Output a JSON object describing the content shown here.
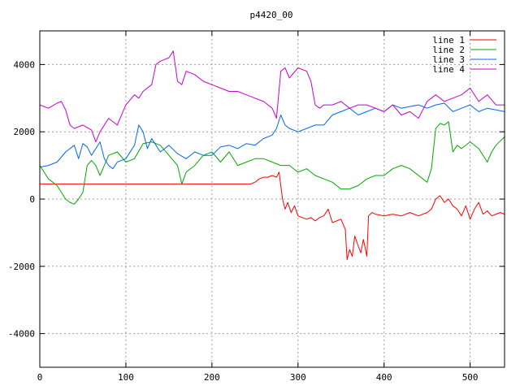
{
  "chart_data": {
    "type": "line",
    "title": "p4420_00",
    "xlabel": "",
    "ylabel": "",
    "xlim": [
      0,
      540
    ],
    "ylim": [
      -5000,
      5000
    ],
    "xticks": [
      0,
      100,
      200,
      300,
      400,
      500
    ],
    "yticks": [
      -4000,
      -2000,
      0,
      2000,
      4000
    ],
    "grid": true,
    "legend_position": "top-right",
    "series": [
      {
        "name": "line 1",
        "color": "#ff0000",
        "x": [
          0,
          50,
          100,
          150,
          200,
          245,
          250,
          255,
          260,
          265,
          270,
          275,
          278,
          282,
          285,
          288,
          292,
          296,
          300,
          305,
          310,
          315,
          320,
          325,
          330,
          335,
          340,
          345,
          350,
          355,
          357,
          360,
          363,
          366,
          370,
          373,
          376,
          380,
          382,
          386,
          390,
          400,
          410,
          420,
          430,
          440,
          450,
          455,
          460,
          465,
          470,
          475,
          480,
          485,
          490,
          495,
          500,
          505,
          510,
          515,
          520,
          525,
          530,
          535,
          540
        ],
        "y": [
          450,
          450,
          450,
          450,
          450,
          450,
          500,
          600,
          650,
          650,
          700,
          650,
          800,
          0,
          -300,
          -100,
          -400,
          -200,
          -500,
          -550,
          -600,
          -550,
          -650,
          -550,
          -500,
          -300,
          -700,
          -650,
          -600,
          -900,
          -1800,
          -1500,
          -1700,
          -1100,
          -1400,
          -1600,
          -1200,
          -1700,
          -500,
          -400,
          -450,
          -500,
          -450,
          -500,
          -400,
          -500,
          -400,
          -300,
          0,
          100,
          -100,
          0,
          -200,
          -300,
          -500,
          -200,
          -600,
          -300,
          -100,
          -450,
          -350,
          -500,
          -450,
          -400,
          -450
        ]
      },
      {
        "name": "line 2",
        "color": "#00aa00",
        "x": [
          0,
          10,
          20,
          30,
          35,
          40,
          45,
          50,
          55,
          60,
          65,
          70,
          80,
          90,
          100,
          110,
          120,
          130,
          140,
          150,
          160,
          165,
          170,
          180,
          190,
          200,
          210,
          220,
          230,
          240,
          250,
          260,
          270,
          280,
          290,
          300,
          310,
          320,
          330,
          340,
          350,
          360,
          370,
          380,
          390,
          400,
          410,
          420,
          430,
          440,
          450,
          455,
          460,
          465,
          470,
          475,
          480,
          485,
          490,
          500,
          510,
          520,
          525,
          530,
          540
        ],
        "y": [
          1000,
          600,
          400,
          0,
          -100,
          -150,
          0,
          200,
          1000,
          1150,
          1000,
          700,
          1300,
          1400,
          1100,
          1200,
          1650,
          1700,
          1600,
          1300,
          1000,
          450,
          800,
          1000,
          1300,
          1400,
          1100,
          1400,
          1000,
          1100,
          1200,
          1200,
          1100,
          1000,
          1000,
          800,
          900,
          700,
          600,
          500,
          300,
          300,
          400,
          600,
          700,
          700,
          900,
          1000,
          900,
          700,
          500,
          900,
          2100,
          2250,
          2200,
          2300,
          1400,
          1600,
          1500,
          1700,
          1500,
          1100,
          1400,
          1600,
          1850
        ]
      },
      {
        "name": "line 3",
        "color": "#0066ff",
        "x": [
          0,
          10,
          20,
          30,
          40,
          45,
          50,
          55,
          60,
          65,
          70,
          75,
          80,
          85,
          90,
          100,
          110,
          115,
          120,
          125,
          130,
          135,
          140,
          150,
          160,
          170,
          180,
          190,
          200,
          210,
          220,
          230,
          240,
          250,
          260,
          270,
          275,
          280,
          285,
          290,
          300,
          310,
          320,
          330,
          340,
          350,
          360,
          370,
          380,
          390,
          400,
          410,
          420,
          430,
          440,
          450,
          460,
          470,
          480,
          490,
          500,
          510,
          520,
          530,
          540
        ],
        "y": [
          950,
          1000,
          1100,
          1400,
          1600,
          1200,
          1650,
          1550,
          1300,
          1500,
          1700,
          1200,
          1000,
          900,
          1100,
          1200,
          1600,
          2200,
          2000,
          1500,
          1800,
          1600,
          1400,
          1600,
          1350,
          1200,
          1400,
          1300,
          1300,
          1550,
          1600,
          1500,
          1650,
          1600,
          1800,
          1900,
          2100,
          2500,
          2200,
          2100,
          2000,
          2100,
          2200,
          2200,
          2500,
          2600,
          2700,
          2500,
          2600,
          2700,
          2600,
          2800,
          2700,
          2750,
          2800,
          2700,
          2800,
          2850,
          2600,
          2700,
          2800,
          2600,
          2700,
          2650,
          2600
        ]
      },
      {
        "name": "line 4",
        "color": "#cc00cc",
        "x": [
          0,
          10,
          20,
          25,
          30,
          35,
          40,
          50,
          60,
          65,
          70,
          80,
          90,
          100,
          110,
          115,
          120,
          130,
          135,
          140,
          150,
          155,
          160,
          165,
          170,
          180,
          190,
          200,
          210,
          220,
          230,
          240,
          250,
          260,
          270,
          275,
          280,
          285,
          290,
          300,
          310,
          315,
          320,
          325,
          330,
          340,
          350,
          360,
          370,
          380,
          390,
          400,
          410,
          420,
          430,
          440,
          450,
          460,
          470,
          480,
          490,
          500,
          510,
          520,
          530,
          540
        ],
        "y": [
          2800,
          2700,
          2850,
          2900,
          2650,
          2200,
          2100,
          2200,
          2050,
          1700,
          2000,
          2400,
          2200,
          2800,
          3100,
          3000,
          3200,
          3400,
          4000,
          4100,
          4200,
          4400,
          3500,
          3400,
          3800,
          3700,
          3500,
          3400,
          3300,
          3200,
          3200,
          3100,
          3000,
          2900,
          2700,
          2400,
          3800,
          3900,
          3600,
          3900,
          3800,
          3500,
          2800,
          2700,
          2800,
          2800,
          2900,
          2700,
          2800,
          2800,
          2700,
          2600,
          2800,
          2500,
          2600,
          2400,
          2900,
          3100,
          2900,
          3000,
          3100,
          3300,
          2900,
          3100,
          2800,
          2800
        ]
      }
    ]
  }
}
